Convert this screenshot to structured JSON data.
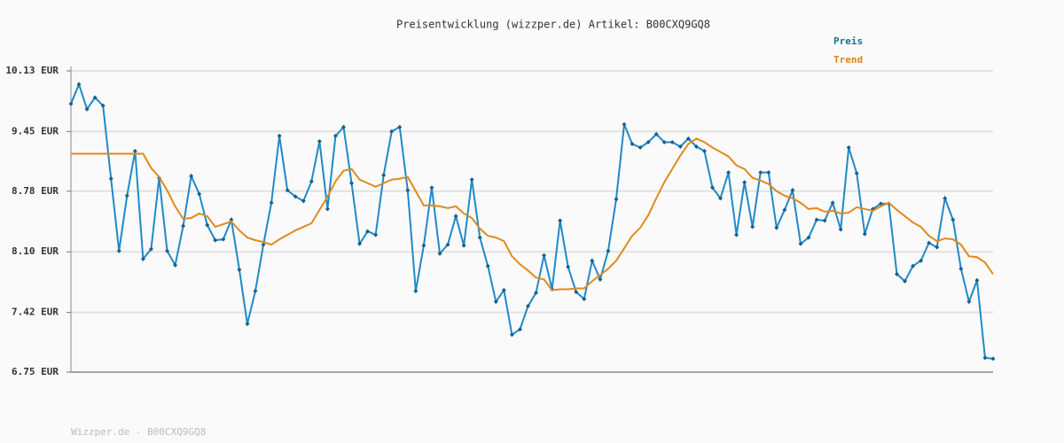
{
  "chart_data": {
    "type": "line",
    "title": "Preisentwicklung (wizzper.de) Artikel: B00CXQ9GQ8",
    "footer": "Wizzper.de - B00CXQ9GQ8",
    "ylim": [
      6.75,
      10.13
    ],
    "yticks": [
      {
        "value": 6.75,
        "label": "6.75 EUR"
      },
      {
        "value": 7.42,
        "label": "7.42 EUR"
      },
      {
        "value": 8.1,
        "label": "8.10 EUR"
      },
      {
        "value": 8.78,
        "label": "8.78 EUR"
      },
      {
        "value": 9.45,
        "label": "9.45 EUR"
      },
      {
        "value": 10.13,
        "label": "10.13 EUR"
      }
    ],
    "grid": true,
    "legend": "top-right",
    "series": [
      {
        "name": "Preis",
        "color": "#1f8ac8",
        "label_color": "#1a7090",
        "markers": true,
        "values": [
          9.76,
          9.98,
          9.7,
          9.83,
          9.74,
          8.92,
          8.11,
          8.73,
          9.23,
          8.02,
          8.13,
          8.93,
          8.11,
          7.95,
          8.39,
          8.95,
          8.75,
          8.4,
          8.23,
          8.24,
          8.46,
          7.9,
          7.29,
          7.66,
          8.18,
          8.65,
          9.4,
          8.79,
          8.72,
          8.67,
          8.89,
          9.34,
          8.58,
          9.4,
          9.5,
          8.87,
          8.19,
          8.33,
          8.29,
          8.96,
          9.45,
          9.5,
          8.79,
          7.66,
          8.17,
          8.82,
          8.08,
          8.18,
          8.5,
          8.17,
          8.91,
          8.26,
          7.94,
          7.54,
          7.67,
          7.17,
          7.23,
          7.49,
          7.64,
          8.06,
          7.68,
          8.45,
          7.93,
          7.65,
          7.57,
          8.0,
          7.79,
          8.11,
          8.69,
          9.53,
          9.31,
          9.27,
          9.33,
          9.42,
          9.33,
          9.33,
          9.28,
          9.37,
          9.28,
          9.23,
          8.82,
          8.7,
          8.99,
          8.29,
          8.88,
          8.38,
          8.99,
          8.99,
          8.37,
          8.57,
          8.79,
          8.19,
          8.26,
          8.46,
          8.45,
          8.65,
          8.35,
          9.27,
          8.98,
          8.3,
          8.58,
          8.64,
          8.64,
          7.85,
          7.77,
          7.94,
          8.0,
          8.2,
          8.15,
          8.7,
          8.46,
          7.91,
          7.54,
          7.78,
          6.91,
          6.9
        ]
      },
      {
        "name": "Trend",
        "color": "#e08a1e",
        "label_color": "#d9851c",
        "markers": false,
        "values": [
          9.2,
          9.2,
          9.2,
          9.2,
          9.2,
          9.2,
          9.2,
          9.2,
          9.2,
          9.2,
          9.04,
          8.94,
          8.79,
          8.61,
          8.47,
          8.48,
          8.53,
          8.5,
          8.38,
          8.41,
          8.44,
          8.34,
          8.26,
          8.23,
          8.21,
          8.18,
          8.24,
          8.29,
          8.34,
          8.38,
          8.42,
          8.57,
          8.72,
          8.89,
          9.01,
          9.03,
          8.91,
          8.87,
          8.83,
          8.87,
          8.91,
          8.92,
          8.94,
          8.78,
          8.62,
          8.62,
          8.61,
          8.59,
          8.61,
          8.53,
          8.48,
          8.36,
          8.28,
          8.26,
          8.22,
          8.05,
          7.96,
          7.89,
          7.81,
          7.79,
          7.67,
          7.68,
          7.68,
          7.69,
          7.69,
          7.77,
          7.84,
          7.91,
          8.0,
          8.14,
          8.28,
          8.37,
          8.51,
          8.7,
          8.88,
          9.03,
          9.18,
          9.31,
          9.37,
          9.33,
          9.27,
          9.22,
          9.17,
          9.07,
          9.03,
          8.93,
          8.9,
          8.86,
          8.78,
          8.73,
          8.7,
          8.65,
          8.58,
          8.59,
          8.55,
          8.56,
          8.53,
          8.54,
          8.6,
          8.58,
          8.56,
          8.61,
          8.65,
          8.57,
          8.5,
          8.43,
          8.38,
          8.28,
          8.22,
          8.25,
          8.24,
          8.18,
          8.05,
          8.04,
          7.98,
          7.85
        ]
      }
    ]
  }
}
